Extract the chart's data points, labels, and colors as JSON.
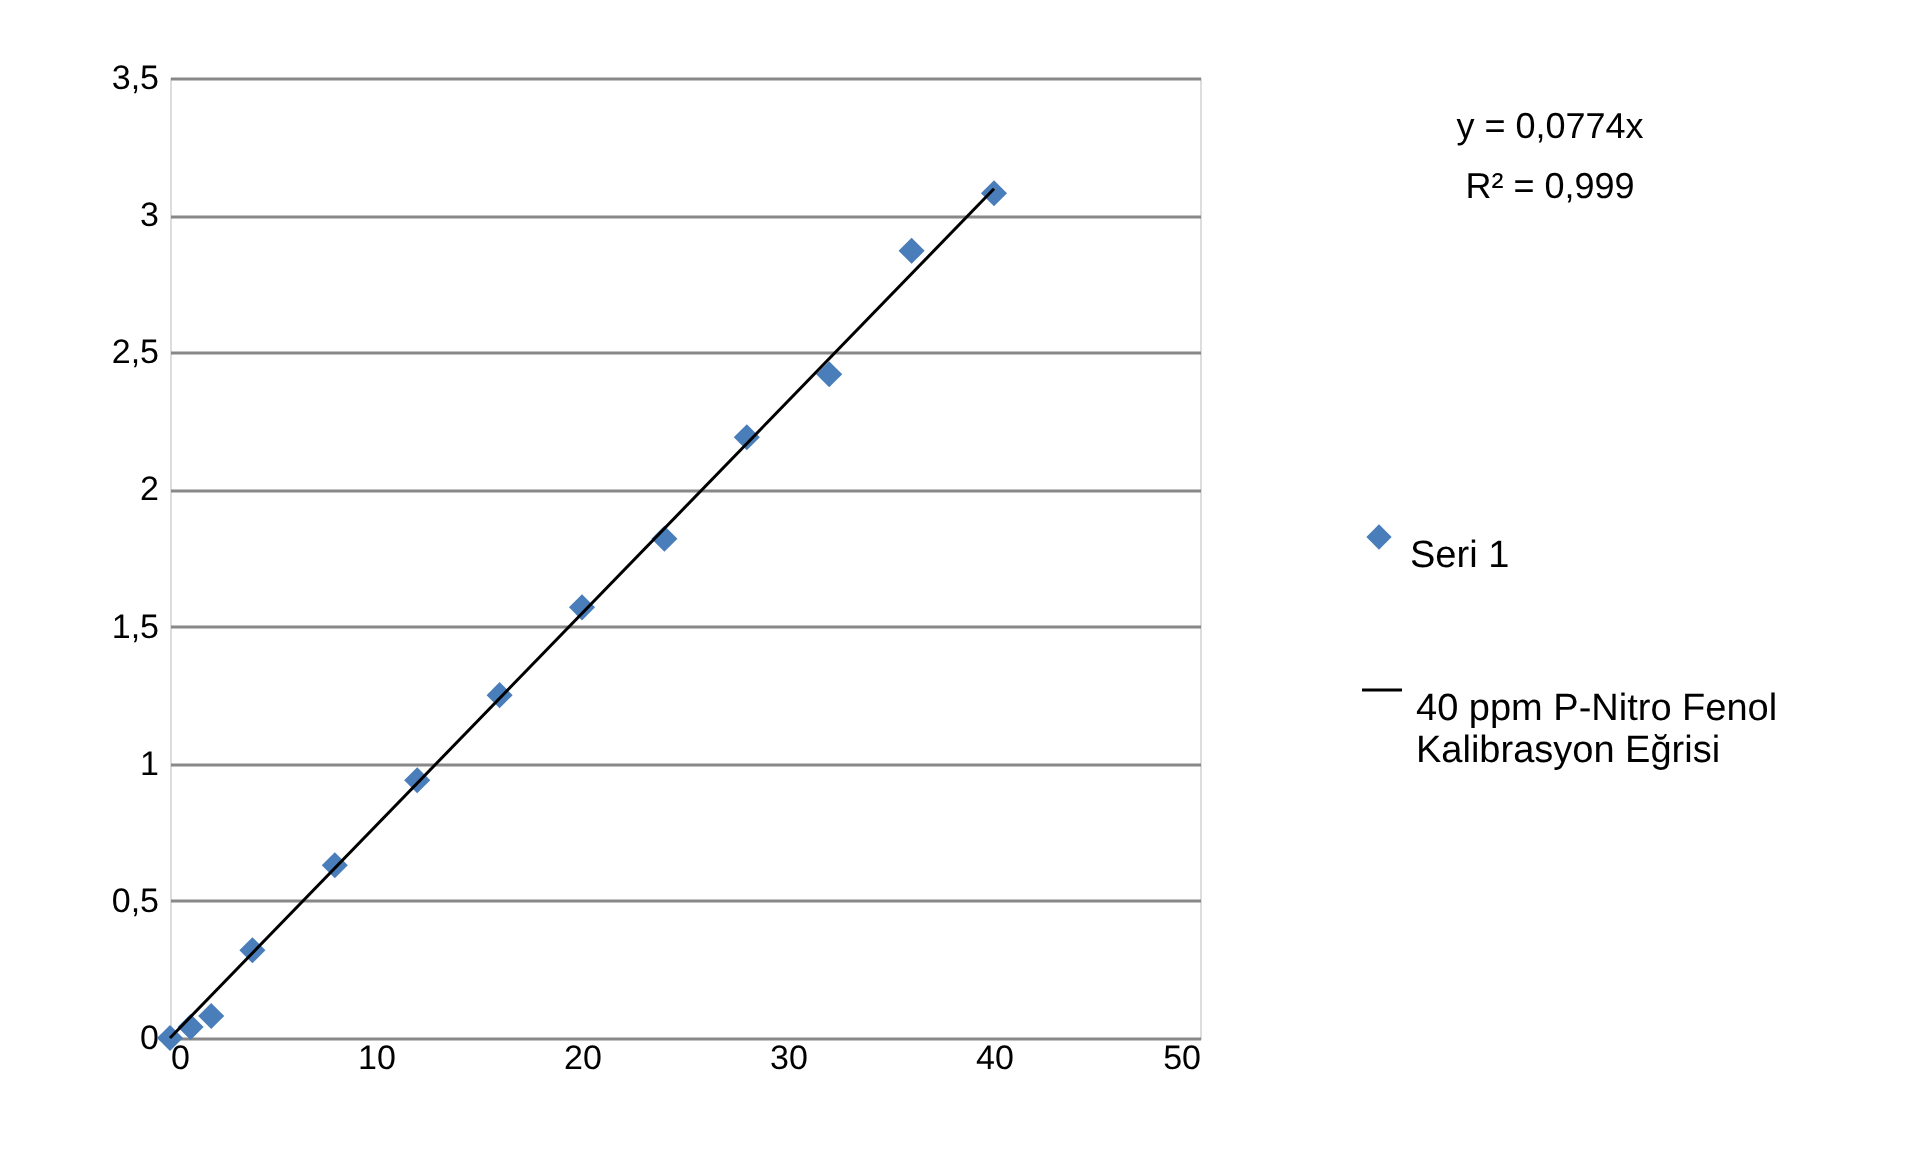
{
  "chart_data": {
    "type": "scatter",
    "x": [
      0,
      1,
      2,
      4,
      8,
      12,
      16,
      20,
      24,
      28,
      32,
      36,
      40
    ],
    "series": [
      {
        "name": "Seri 1",
        "color": "#4a7ebb",
        "marker": "diamond",
        "values": [
          0,
          0.04,
          0.08,
          0.32,
          0.63,
          0.94,
          1.25,
          1.57,
          1.82,
          2.19,
          2.42,
          2.87,
          3.08
        ]
      },
      {
        "name": "40 ppm P-Nitro Fenol Kalibrasyon Eğrisi",
        "type": "line",
        "color": "#000000",
        "marker": "none",
        "line_style": "solid",
        "x": [
          0,
          40
        ],
        "values": [
          0,
          3.096
        ]
      }
    ],
    "xlim": [
      0,
      50
    ],
    "xticks": [
      0,
      10,
      20,
      30,
      40,
      50
    ],
    "ylim": [
      0,
      3.5
    ],
    "yticks": [
      0,
      {
        "value": 0.5,
        "label": "0,5"
      },
      1,
      {
        "value": 1.5,
        "label": "1,5"
      },
      2,
      {
        "value": 2.5,
        "label": "2,5"
      },
      3,
      {
        "value": 3.5,
        "label": "3,5"
      }
    ],
    "grid": "y",
    "legend": "right",
    "annotations": [
      "y = 0,0774x",
      "R² = 0,999"
    ]
  }
}
